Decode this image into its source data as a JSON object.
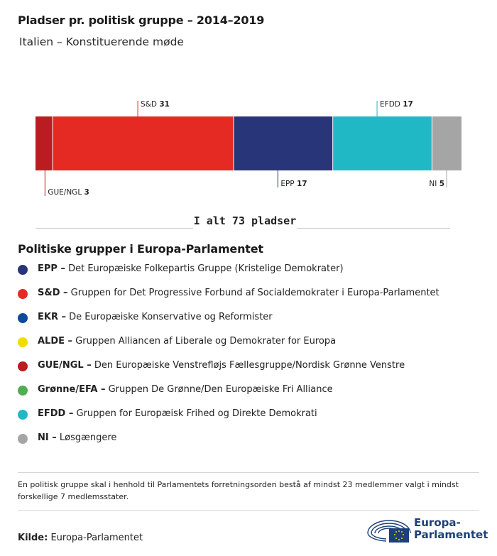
{
  "title": "Pladser pr. politisk gruppe – 2014–2019",
  "subtitle": "Italien – Konstituerende møde",
  "chart_data": {
    "type": "bar",
    "orientation": "horizontal-stacked",
    "unit": "pladser",
    "total_value": 73,
    "total_label": "I alt 73 pladser",
    "segments": [
      {
        "label": "GUE/NGL",
        "value": 3,
        "color": "#bb1c21",
        "label_side": "bottom"
      },
      {
        "label": "S&D",
        "value": 31,
        "color": "#e52a24",
        "label_side": "top"
      },
      {
        "label": "EPP",
        "value": 17,
        "color": "#283579",
        "label_side": "bottom"
      },
      {
        "label": "EFDD",
        "value": 17,
        "color": "#21b8c6",
        "label_side": "top"
      },
      {
        "label": "NI",
        "value": 5,
        "color": "#a5a5a5",
        "label_side": "bottom"
      }
    ]
  },
  "legend": {
    "title": "Politiske grupper i Europa-Parlamentet",
    "items": [
      {
        "abbr": "EPP –",
        "text": "Det Europæiske Folkepartis Gruppe (Kristelige Demokrater)",
        "color": "#283579"
      },
      {
        "abbr": "S&D –",
        "text": "Gruppen for Det Progressive Forbund af Socialdemokrater i Europa-Parlamentet",
        "color": "#e52a24"
      },
      {
        "abbr": "EKR –",
        "text": "De Europæiske Konservative og Reformister",
        "color": "#0c4b9b"
      },
      {
        "abbr": "ALDE –",
        "text": "Gruppen Alliancen af Liberale og Demokrater for Europa",
        "color": "#f1dc00"
      },
      {
        "abbr": "GUE/NGL –",
        "text": "Den Europæiske Venstrefløjs Fællesgruppe/Nordisk Grønne Venstre",
        "color": "#bb1c21"
      },
      {
        "abbr": "Grønne/EFA –",
        "text": "Gruppen De Grønne/Den Europæiske Fri Alliance",
        "color": "#4fae4f"
      },
      {
        "abbr": "EFDD –",
        "text": "Gruppen for Europæisk Frihed og Direkte Demokrati",
        "color": "#21b8c6"
      },
      {
        "abbr": "NI –",
        "text": "Løsgængere",
        "color": "#a5a5a5"
      }
    ]
  },
  "note": "En politisk gruppe skal i henhold til Parlamentets forretningsorden bestå af mindst 23 medlemmer valgt i mindst forskellige 7 medlemsstater.",
  "source": {
    "label": "Kilde:",
    "value": "Europa-Parlamentet"
  },
  "logo": {
    "line1": "Europa-",
    "line2": "Parlamentet",
    "icon": "european-parliament-logo-icon"
  }
}
